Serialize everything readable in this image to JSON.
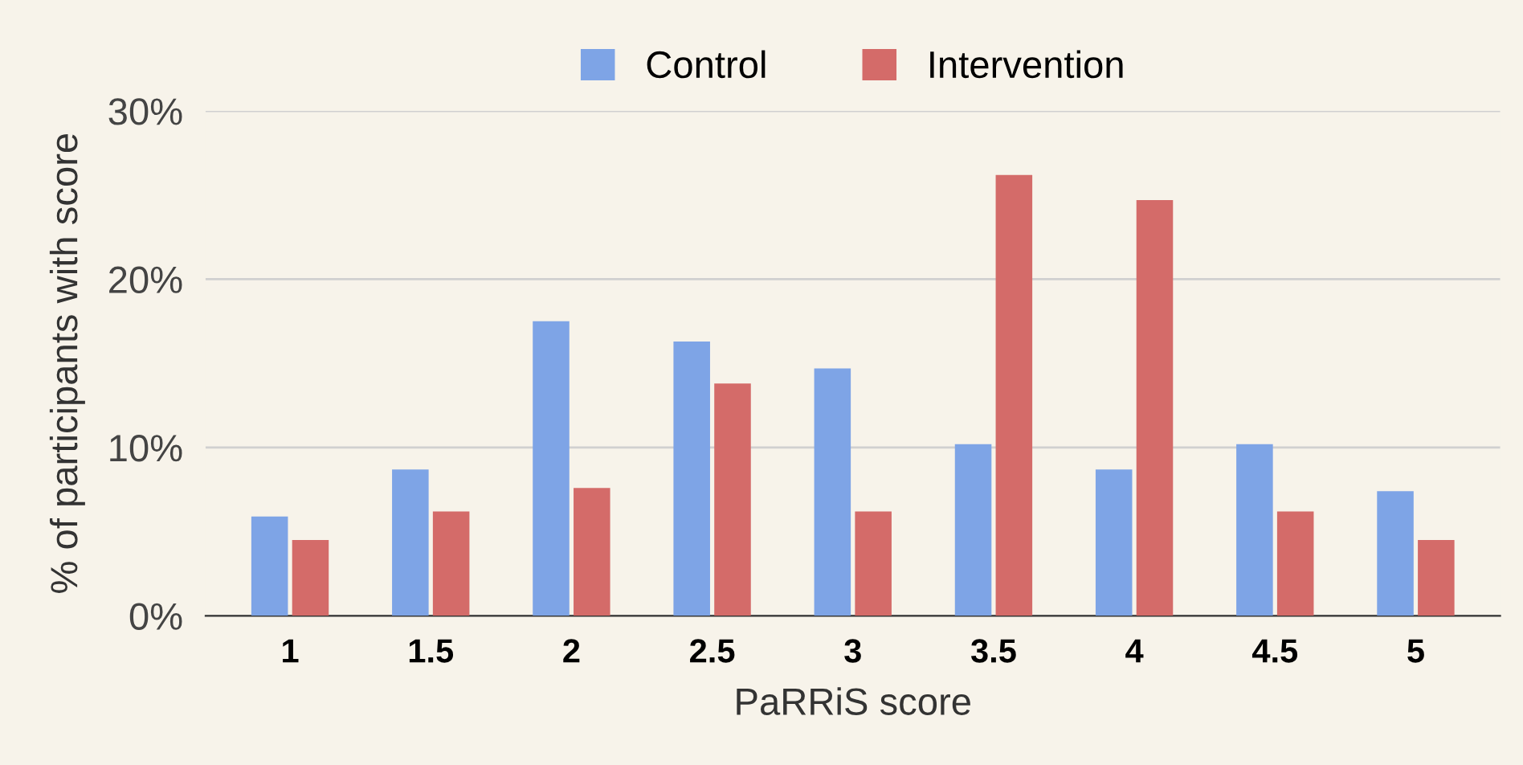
{
  "chart_data": {
    "type": "bar",
    "xlabel": "PaRRiS score",
    "ylabel": "% of participants with score",
    "categories": [
      "1",
      "1.5",
      "2",
      "2.5",
      "3",
      "3.5",
      "4",
      "4.5",
      "5"
    ],
    "series": [
      {
        "name": "Control",
        "color": "#7ea4e6",
        "values": [
          5.9,
          8.7,
          17.5,
          16.3,
          14.7,
          10.2,
          8.7,
          10.2,
          7.4
        ]
      },
      {
        "name": "Intervention",
        "color": "#d46b69",
        "values": [
          4.5,
          6.2,
          7.6,
          13.8,
          6.2,
          26.2,
          24.7,
          6.2,
          4.5
        ]
      }
    ],
    "ylim": [
      0,
      30
    ],
    "yticks": [
      {
        "value": 0,
        "label": "0%"
      },
      {
        "value": 10,
        "label": "10%"
      },
      {
        "value": 20,
        "label": "20%"
      },
      {
        "value": 30,
        "label": "30%"
      }
    ],
    "grid": "y",
    "legend": "top"
  }
}
